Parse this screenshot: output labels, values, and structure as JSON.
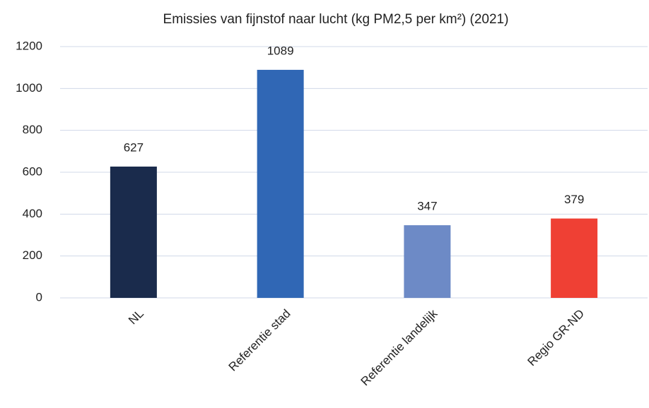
{
  "chart_data": {
    "type": "bar",
    "title": "Emissies van fijnstof naar lucht (kg PM2,5 per km²) (2021)",
    "categories": [
      "NL",
      "Referentie stad",
      "Referentie landelijk",
      "Regio GR-ND"
    ],
    "values": [
      627,
      1089,
      347,
      379
    ],
    "colors": [
      "#1a2b4c",
      "#3067b5",
      "#6d8ac6",
      "#ef4034"
    ],
    "ylim": [
      0,
      1200
    ],
    "yticks": [
      0,
      200,
      400,
      600,
      800,
      1000,
      1200
    ],
    "grid": true
  }
}
